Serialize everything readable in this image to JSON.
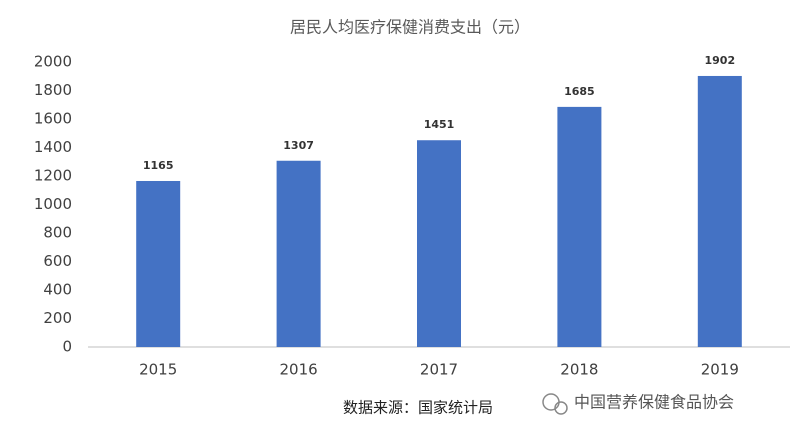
{
  "chart_data": {
    "type": "bar",
    "title": "居民人均医疗保健消费支出（元）",
    "categories": [
      "2015",
      "2016",
      "2017",
      "2018",
      "2019"
    ],
    "values": [
      1165,
      1307,
      1451,
      1685,
      1902
    ],
    "color": "#4472c4",
    "ylim": [
      0,
      2000
    ],
    "yticks": [
      0,
      200,
      400,
      600,
      800,
      1000,
      1200,
      1400,
      1600,
      1800,
      2000
    ],
    "grid": false,
    "source": "数据来源：国家统计局",
    "watermark": "中国营养保健食品协会"
  }
}
